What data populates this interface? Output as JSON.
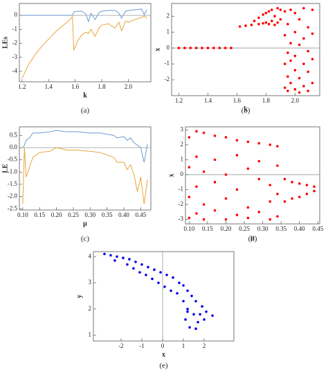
{
  "chart_data": [
    {
      "type": "line",
      "caption": "(a)",
      "xlabel": "k",
      "ylabel": "LEs",
      "xlim": [
        1.18,
        2.17
      ],
      "ylim": [
        -4.75,
        0.85
      ],
      "xticks": [
        1.2,
        1.4,
        1.6,
        1.8,
        {
          "value": 2,
          "label": "2.0"
        }
      ],
      "yticks": [
        0,
        -1,
        -2,
        -3,
        -4
      ],
      "x": [
        1.2,
        1.25,
        1.3,
        1.35,
        1.4,
        1.45,
        1.5,
        1.55,
        1.58,
        1.59,
        1.62,
        1.65,
        1.68,
        1.7,
        1.72,
        1.75,
        1.78,
        1.8,
        1.85,
        1.9,
        1.93,
        1.95,
        1.98,
        2.0,
        2.05,
        2.1,
        2.12,
        2.14
      ],
      "series": [
        {
          "color": "#6b9ad3",
          "values": [
            0,
            0,
            0,
            0,
            0,
            0,
            0,
            0,
            0,
            0.25,
            0.3,
            0.3,
            0.1,
            -0.45,
            0.15,
            -0.3,
            0.2,
            0.3,
            0.35,
            0.35,
            0.15,
            -0.2,
            0.3,
            0.35,
            0.4,
            0.45,
            0.05,
            0.4
          ]
        },
        {
          "color": "#e8a438",
          "values": [
            -4.5,
            -3.5,
            -2.8,
            -2.2,
            -1.7,
            -1.2,
            -0.8,
            -0.4,
            -0.1,
            -2.5,
            -1.8,
            -1.4,
            -1.2,
            -1.3,
            -1.0,
            -1.5,
            -0.9,
            -0.7,
            -0.6,
            -0.9,
            -0.5,
            -1.1,
            -0.4,
            -0.5,
            -0.3,
            -0.15,
            -0.05,
            -0.2
          ]
        }
      ]
    },
    {
      "type": "scatter",
      "caption": "(b)",
      "xlabel": "k",
      "ylabel": "x",
      "color": "#ff0000",
      "xlim": [
        1.15,
        2.17
      ],
      "ylim": [
        -3.0,
        2.8
      ],
      "xticks": [
        1.2,
        1.4,
        1.6,
        1.8,
        {
          "value": 2,
          "label": "2.0"
        }
      ],
      "yticks": [
        -2,
        -1,
        0,
        1,
        2
      ],
      "x": [
        1.2,
        1.24,
        1.28,
        1.32,
        1.36,
        1.4,
        1.44,
        1.48,
        1.52,
        1.56,
        1.62,
        1.66,
        1.7,
        1.72,
        1.75,
        1.75,
        1.78,
        1.78,
        1.8,
        1.8,
        1.82,
        1.82,
        1.84,
        1.84,
        1.86,
        1.86,
        1.88,
        1.88,
        1.9,
        1.9,
        1.93,
        1.93,
        1.93,
        1.93,
        1.95,
        1.95,
        1.95,
        1.95,
        1.97,
        1.97,
        1.97,
        1.97,
        2.0,
        2.0,
        2.0,
        2.0,
        2.0,
        2.03,
        2.03,
        2.03,
        2.03,
        2.06,
        2.06,
        2.06,
        2.06,
        2.09,
        2.09,
        2.09,
        2.09,
        2.12,
        2.12,
        2.12,
        2.12
      ],
      "y": [
        0,
        0,
        0,
        0,
        0,
        0,
        0,
        0,
        0,
        0,
        1.35,
        1.4,
        1.45,
        1.7,
        1.5,
        1.9,
        1.55,
        2.1,
        1.6,
        2.2,
        1.5,
        2.3,
        1.7,
        2.4,
        1.45,
        2.0,
        2.5,
        1.6,
        1.8,
        2.4,
        -2.5,
        -1,
        0.8,
        2.3,
        -2.7,
        -1.8,
        -0.3,
        1.5,
        -2.2,
        -0.8,
        0.3,
        2.4,
        -2.6,
        -1.4,
        -0.5,
        1.0,
        2.2,
        -2.8,
        -1.9,
        0.2,
        1.8,
        -2.4,
        -1.0,
        0.6,
        2.5,
        -2.7,
        -1.5,
        -0.2,
        1.3,
        -2.2,
        -0.7,
        0.9,
        2.4
      ]
    },
    {
      "type": "line",
      "caption": "(c)",
      "xlabel": "μ",
      "ylabel": "LE",
      "xlim": [
        0.09,
        0.48
      ],
      "ylim": [
        -2.55,
        0.85
      ],
      "xticks": [
        {
          "value": 0.1,
          "label": "0.10"
        },
        0.15,
        {
          "value": 0.2,
          "label": "0.20"
        },
        0.25,
        {
          "value": 0.3,
          "label": "0.30"
        },
        0.35,
        {
          "value": 0.4,
          "label": "0.40"
        },
        0.45
      ],
      "yticks": [
        0.5,
        {
          "value": 0,
          "label": "0.0"
        },
        -0.5,
        {
          "value": -1,
          "label": "-1.0"
        },
        -1.5,
        {
          "value": -2,
          "label": "-2.0"
        },
        -2.5
      ],
      "x": [
        0.1,
        0.105,
        0.11,
        0.12,
        0.13,
        0.15,
        0.18,
        0.2,
        0.23,
        0.26,
        0.3,
        0.33,
        0.35,
        0.37,
        0.38,
        0.4,
        0.41,
        0.42,
        0.43,
        0.44,
        0.45,
        0.46,
        0.47
      ],
      "series": [
        {
          "color": "#6b9ad3",
          "values": [
            0,
            0.1,
            0.3,
            0.4,
            0.6,
            0.6,
            0.65,
            0.7,
            0.65,
            0.65,
            0.6,
            0.6,
            0.55,
            0.5,
            0.4,
            0.45,
            0.3,
            0.4,
            0.2,
            0.1,
            0.0,
            -0.6,
            0.15
          ]
        },
        {
          "color": "#e8a438",
          "values": [
            -2.3,
            0.0,
            -1.2,
            -0.8,
            -0.4,
            -0.2,
            -0.15,
            0.0,
            -0.1,
            -0.1,
            -0.15,
            -0.2,
            -0.3,
            -0.4,
            -0.6,
            -0.6,
            -0.9,
            -0.7,
            -1.1,
            -1.8,
            -1.2,
            -2.3,
            -1.3
          ]
        }
      ]
    },
    {
      "type": "scatter",
      "caption": "(d)",
      "xlabel": "μ",
      "ylabel": "x",
      "color": "#ff0000",
      "xlim": [
        0.09,
        0.455
      ],
      "ylim": [
        -3.3,
        3.2
      ],
      "xticks": [
        {
          "value": 0.1,
          "label": "0.10"
        },
        0.15,
        {
          "value": 0.2,
          "label": "0.20"
        },
        0.25,
        {
          "value": 0.3,
          "label": "0.30"
        },
        0.35,
        {
          "value": 0.4,
          "label": "0.40"
        },
        0.45
      ],
      "yticks": [
        -3,
        -2,
        -1,
        0,
        1,
        2,
        3
      ],
      "x": [
        0.1,
        0.1,
        0.1,
        0.1,
        0.12,
        0.12,
        0.12,
        0.12,
        0.14,
        0.14,
        0.14,
        0.14,
        0.17,
        0.17,
        0.17,
        0.17,
        0.2,
        0.2,
        0.2,
        0.2,
        0.23,
        0.23,
        0.23,
        0.23,
        0.26,
        0.26,
        0.26,
        0.26,
        0.29,
        0.29,
        0.29,
        0.29,
        0.32,
        0.32,
        0.32,
        0.32,
        0.34,
        0.34,
        0.34,
        0.34,
        0.36,
        0.36,
        0.38,
        0.38,
        0.4,
        0.4,
        0.42,
        0.42,
        0.44,
        0.44
      ],
      "y": [
        2.5,
        0.5,
        -1.5,
        -2.9,
        2.9,
        1.2,
        -0.8,
        -2.6,
        2.8,
        0.2,
        -2.0,
        -3.0,
        2.6,
        1.0,
        -0.5,
        -2.4,
        2.5,
        0.0,
        -1.6,
        -3.0,
        2.3,
        1.3,
        -1.0,
        -2.7,
        2.2,
        0.4,
        -2.2,
        -2.9,
        2.1,
        0.9,
        -0.3,
        -2.5,
        2.0,
        -0.7,
        -1.8,
        -3.0,
        1.9,
        0.6,
        -1.3,
        -2.8,
        -0.3,
        -1.8,
        -0.5,
        -1.6,
        -0.6,
        -1.5,
        -0.7,
        -1.3,
        -0.8,
        -1.1
      ]
    },
    {
      "type": "scatter",
      "caption": "(e)",
      "xlabel": "x",
      "ylabel": "y",
      "color": "#0000ee",
      "xlim": [
        -3.33,
        3.43
      ],
      "ylim": [
        0.78,
        4.19
      ],
      "xticks": [
        -2,
        -1,
        0,
        1,
        2
      ],
      "yticks": [
        1,
        2,
        3,
        4
      ],
      "x": [
        -2.8,
        -2.5,
        -2.2,
        -1.9,
        -2.3,
        -1.6,
        -1.3,
        -1.7,
        -1.0,
        -1.4,
        -0.7,
        -1.1,
        -0.4,
        -0.8,
        -0.1,
        -0.5,
        0.2,
        -0.2,
        0.5,
        0.1,
        0.8,
        0.4,
        1.0,
        0.7,
        1.2,
        1.0,
        1.4,
        1.2,
        1.6,
        1.1,
        1.5,
        1.9,
        1.3,
        1.7,
        2.1,
        2.4,
        2.0,
        1.6,
        1.2,
        1.8
      ],
      "y": [
        4.1,
        4.05,
        4.0,
        3.95,
        3.85,
        3.9,
        3.8,
        3.7,
        3.7,
        3.55,
        3.6,
        3.4,
        3.5,
        3.3,
        3.4,
        3.15,
        3.3,
        3.0,
        3.2,
        2.85,
        3.0,
        2.7,
        2.9,
        2.6,
        2.7,
        2.3,
        2.5,
        2.0,
        2.3,
        1.6,
        1.8,
        2.1,
        1.3,
        1.5,
        1.9,
        1.75,
        1.6,
        1.25,
        1.9,
        1.8
      ]
    }
  ]
}
